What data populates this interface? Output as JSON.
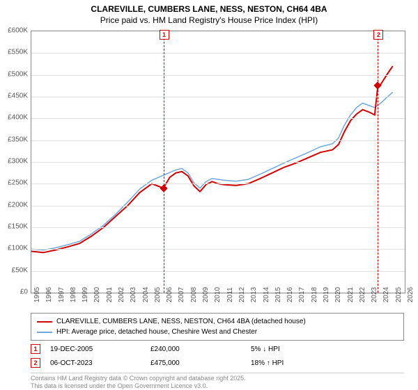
{
  "header": {
    "title": "CLAREVILLE, CUMBERS LANE, NESS, NESTON, CH64 4BA",
    "subtitle": "Price paid vs. HM Land Registry's House Price Index (HPI)"
  },
  "chart": {
    "type": "line",
    "background_color": "#ffffff",
    "grid_color": "#e0e0e0",
    "border_color": "#888888",
    "ylim": [
      0,
      600000
    ],
    "ytick_step": 50000,
    "ytick_labels": [
      "£0",
      "£50K",
      "£100K",
      "£150K",
      "£200K",
      "£250K",
      "£300K",
      "£350K",
      "£400K",
      "£450K",
      "£500K",
      "£550K",
      "£600K"
    ],
    "xlim": [
      1995,
      2026
    ],
    "xtick_step": 1,
    "xtick_labels": [
      "1995",
      "1996",
      "1997",
      "1998",
      "1999",
      "2000",
      "2001",
      "2002",
      "2003",
      "2004",
      "2005",
      "2006",
      "2007",
      "2008",
      "2009",
      "2010",
      "2011",
      "2012",
      "2013",
      "2014",
      "2015",
      "2016",
      "2017",
      "2018",
      "2019",
      "2020",
      "2021",
      "2022",
      "2023",
      "2024",
      "2025",
      "2026"
    ],
    "series": [
      {
        "name": "property",
        "label": "CLAREVILLE, CUMBERS LANE, NESS, NESTON, CH64 4BA (detached house)",
        "color": "#d00000",
        "line_width": 2,
        "data": [
          [
            1995,
            95000
          ],
          [
            1996,
            92000
          ],
          [
            1997,
            98000
          ],
          [
            1998,
            105000
          ],
          [
            1999,
            113000
          ],
          [
            2000,
            130000
          ],
          [
            2001,
            150000
          ],
          [
            2002,
            175000
          ],
          [
            2003,
            200000
          ],
          [
            2004,
            230000
          ],
          [
            2005,
            250000
          ],
          [
            2005.96,
            240000
          ],
          [
            2006.5,
            265000
          ],
          [
            2007,
            275000
          ],
          [
            2007.5,
            278000
          ],
          [
            2008,
            268000
          ],
          [
            2008.5,
            245000
          ],
          [
            2009,
            232000
          ],
          [
            2009.5,
            248000
          ],
          [
            2010,
            255000
          ],
          [
            2010.5,
            250000
          ],
          [
            2011,
            248000
          ],
          [
            2012,
            246000
          ],
          [
            2013,
            250000
          ],
          [
            2014,
            262000
          ],
          [
            2015,
            275000
          ],
          [
            2016,
            288000
          ],
          [
            2017,
            298000
          ],
          [
            2018,
            310000
          ],
          [
            2019,
            322000
          ],
          [
            2020,
            328000
          ],
          [
            2020.5,
            340000
          ],
          [
            2021,
            370000
          ],
          [
            2021.5,
            395000
          ],
          [
            2022,
            410000
          ],
          [
            2022.5,
            420000
          ],
          [
            2023,
            415000
          ],
          [
            2023.5,
            408000
          ],
          [
            2023.77,
            475000
          ],
          [
            2024,
            478000
          ],
          [
            2024.5,
            500000
          ],
          [
            2025,
            520000
          ]
        ]
      },
      {
        "name": "hpi",
        "label": "HPI: Average price, detached house, Cheshire West and Chester",
        "color": "#6fa8dc",
        "line_width": 1.5,
        "data": [
          [
            1995,
            100000
          ],
          [
            1996,
            98000
          ],
          [
            1997,
            103000
          ],
          [
            1998,
            110000
          ],
          [
            1999,
            118000
          ],
          [
            2000,
            135000
          ],
          [
            2001,
            155000
          ],
          [
            2002,
            180000
          ],
          [
            2003,
            208000
          ],
          [
            2004,
            238000
          ],
          [
            2005,
            258000
          ],
          [
            2006,
            270000
          ],
          [
            2007,
            282000
          ],
          [
            2007.5,
            285000
          ],
          [
            2008,
            275000
          ],
          [
            2008.5,
            252000
          ],
          [
            2009,
            240000
          ],
          [
            2009.5,
            255000
          ],
          [
            2010,
            262000
          ],
          [
            2011,
            258000
          ],
          [
            2012,
            256000
          ],
          [
            2013,
            260000
          ],
          [
            2014,
            272000
          ],
          [
            2015,
            285000
          ],
          [
            2016,
            298000
          ],
          [
            2017,
            310000
          ],
          [
            2018,
            322000
          ],
          [
            2019,
            335000
          ],
          [
            2020,
            342000
          ],
          [
            2020.5,
            355000
          ],
          [
            2021,
            385000
          ],
          [
            2021.5,
            408000
          ],
          [
            2022,
            425000
          ],
          [
            2022.5,
            435000
          ],
          [
            2023,
            430000
          ],
          [
            2023.5,
            425000
          ],
          [
            2024,
            435000
          ],
          [
            2024.5,
            448000
          ],
          [
            2025,
            460000
          ]
        ]
      }
    ],
    "markers": [
      {
        "num": "1",
        "x": 2005.96,
        "y": 240000,
        "line_color": "#d00000"
      },
      {
        "num": "2",
        "x": 2023.77,
        "y": 475000,
        "line_color": "#d00000"
      }
    ]
  },
  "legend": {
    "items": [
      {
        "color": "#d00000",
        "width": 2,
        "label": "CLAREVILLE, CUMBERS LANE, NESS, NESTON, CH64 4BA (detached house)"
      },
      {
        "color": "#6fa8dc",
        "width": 2,
        "label": "HPI: Average price, detached house, Cheshire West and Chester"
      }
    ]
  },
  "sales": [
    {
      "num": "1",
      "date": "19-DEC-2005",
      "price": "£240,000",
      "hpi": "5% ↓ HPI"
    },
    {
      "num": "2",
      "date": "06-OCT-2023",
      "price": "£475,000",
      "hpi": "18% ↑ HPI"
    }
  ],
  "footnote": {
    "line1": "Contains HM Land Registry data © Crown copyright and database right 2025.",
    "line2": "This data is licensed under the Open Government Licence v3.0."
  }
}
